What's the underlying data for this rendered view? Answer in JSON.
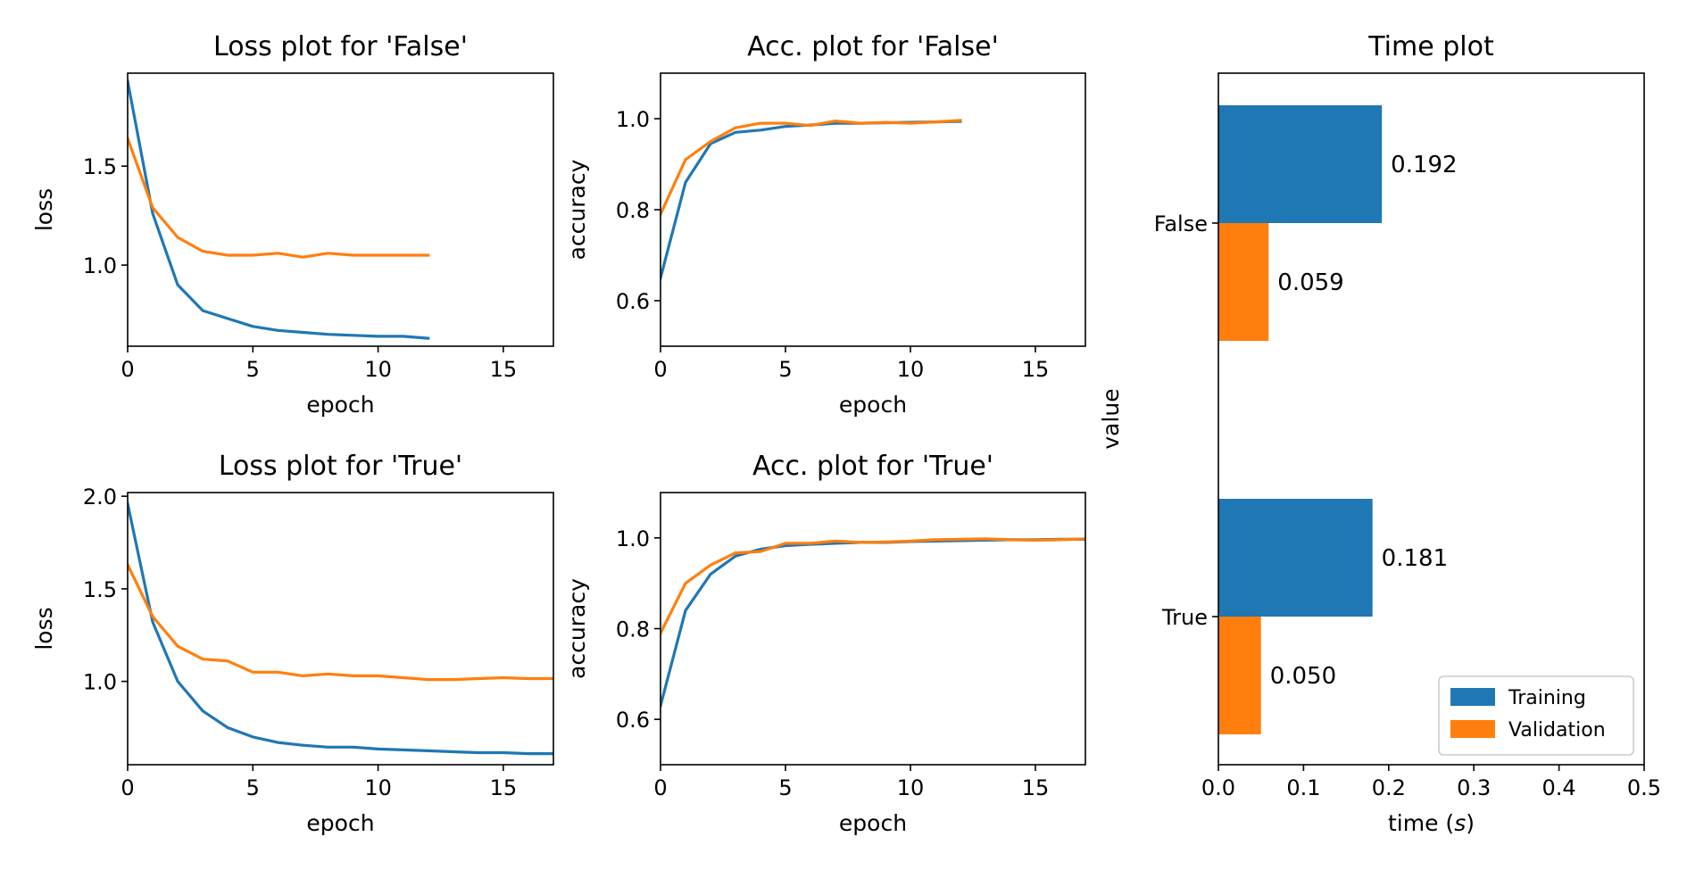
{
  "chart_data": [
    {
      "type": "line",
      "title": "Loss plot for 'False'",
      "xlabel": "epoch",
      "ylabel": "loss",
      "xlim": [
        0,
        17
      ],
      "ylim": [
        0.59,
        1.97
      ],
      "xticks": [
        0,
        5,
        10,
        15
      ],
      "yticks": [
        1.0,
        1.5
      ],
      "grid": false,
      "series": [
        {
          "color": "#1f77b4",
          "x": [
            0,
            1,
            2,
            3,
            4,
            5,
            6,
            7,
            8,
            9,
            10,
            11,
            12
          ],
          "y": [
            1.93,
            1.26,
            0.9,
            0.77,
            0.73,
            0.69,
            0.67,
            0.66,
            0.65,
            0.645,
            0.64,
            0.64,
            0.63
          ]
        },
        {
          "color": "#ff7f0e",
          "x": [
            0,
            1,
            2,
            3,
            4,
            5,
            6,
            7,
            8,
            9,
            10,
            11,
            12
          ],
          "y": [
            1.64,
            1.29,
            1.14,
            1.07,
            1.05,
            1.05,
            1.06,
            1.04,
            1.06,
            1.05,
            1.05,
            1.05,
            1.05
          ]
        }
      ]
    },
    {
      "type": "line",
      "title": "Acc. plot for 'False'",
      "xlabel": "epoch",
      "ylabel": "accuracy",
      "xlim": [
        0,
        17
      ],
      "ylim": [
        0.5,
        1.1
      ],
      "xticks": [
        0,
        5,
        10,
        15
      ],
      "yticks": [
        0.6,
        0.8,
        1.0
      ],
      "grid": false,
      "series": [
        {
          "color": "#1f77b4",
          "x": [
            0,
            1,
            2,
            3,
            4,
            5,
            6,
            7,
            8,
            9,
            10,
            11,
            12
          ],
          "y": [
            0.65,
            0.86,
            0.945,
            0.97,
            0.975,
            0.983,
            0.986,
            0.99,
            0.99,
            0.991,
            0.992,
            0.993,
            0.994
          ]
        },
        {
          "color": "#ff7f0e",
          "x": [
            0,
            1,
            2,
            3,
            4,
            5,
            6,
            7,
            8,
            9,
            10,
            11,
            12
          ],
          "y": [
            0.79,
            0.91,
            0.95,
            0.98,
            0.99,
            0.99,
            0.985,
            0.995,
            0.99,
            0.992,
            0.99,
            0.993,
            0.996
          ]
        }
      ]
    },
    {
      "type": "line",
      "title": "Loss plot for 'True'",
      "xlabel": "epoch",
      "ylabel": "loss",
      "xlim": [
        0,
        17
      ],
      "ylim": [
        0.55,
        2.02
      ],
      "xticks": [
        0,
        5,
        10,
        15
      ],
      "yticks": [
        1.0,
        1.5,
        2.0
      ],
      "grid": false,
      "series": [
        {
          "color": "#1f77b4",
          "x": [
            0,
            1,
            2,
            3,
            4,
            5,
            6,
            7,
            8,
            9,
            10,
            11,
            12,
            13,
            14,
            15,
            16,
            17
          ],
          "y": [
            1.96,
            1.32,
            1.0,
            0.84,
            0.75,
            0.7,
            0.67,
            0.655,
            0.645,
            0.645,
            0.635,
            0.63,
            0.625,
            0.62,
            0.615,
            0.615,
            0.61,
            0.61
          ]
        },
        {
          "color": "#ff7f0e",
          "x": [
            0,
            1,
            2,
            3,
            4,
            5,
            6,
            7,
            8,
            9,
            10,
            11,
            12,
            13,
            14,
            15,
            16,
            17
          ],
          "y": [
            1.63,
            1.35,
            1.19,
            1.12,
            1.11,
            1.05,
            1.05,
            1.03,
            1.04,
            1.03,
            1.03,
            1.02,
            1.01,
            1.01,
            1.015,
            1.02,
            1.015,
            1.015
          ]
        }
      ]
    },
    {
      "type": "line",
      "title": "Acc. plot for 'True'",
      "xlabel": "epoch",
      "ylabel": "accuracy",
      "xlim": [
        0,
        17
      ],
      "ylim": [
        0.5,
        1.1
      ],
      "xticks": [
        0,
        5,
        10,
        15
      ],
      "yticks": [
        0.6,
        0.8,
        1.0
      ],
      "grid": false,
      "series": [
        {
          "color": "#1f77b4",
          "x": [
            0,
            1,
            2,
            3,
            4,
            5,
            6,
            7,
            8,
            9,
            10,
            11,
            12,
            13,
            14,
            15,
            16,
            17
          ],
          "y": [
            0.63,
            0.84,
            0.92,
            0.96,
            0.975,
            0.983,
            0.986,
            0.988,
            0.99,
            0.99,
            0.992,
            0.993,
            0.994,
            0.995,
            0.996,
            0.996,
            0.997,
            0.997
          ]
        },
        {
          "color": "#ff7f0e",
          "x": [
            0,
            1,
            2,
            3,
            4,
            5,
            6,
            7,
            8,
            9,
            10,
            11,
            12,
            13,
            14,
            15,
            16,
            17
          ],
          "y": [
            0.79,
            0.9,
            0.94,
            0.967,
            0.97,
            0.988,
            0.988,
            0.993,
            0.99,
            0.991,
            0.993,
            0.996,
            0.997,
            0.998,
            0.996,
            0.995,
            0.996,
            0.998
          ]
        }
      ]
    },
    {
      "type": "bar",
      "orientation": "horizontal",
      "title": "Time plot",
      "xlabel_main": "time (",
      "xlabel_italic": "s",
      "xlabel_end": ")",
      "ylabel": "value",
      "categories": [
        "False",
        "True"
      ],
      "xlim": [
        0,
        0.5
      ],
      "xticks": [
        0.0,
        0.1,
        0.2,
        0.3,
        0.4,
        0.5
      ],
      "legend_position": "lower-right",
      "series": [
        {
          "name": "Training",
          "color": "#1f77b4",
          "values": [
            0.192,
            0.181
          ],
          "labels": [
            "0.192",
            "0.181"
          ]
        },
        {
          "name": "Validation",
          "color": "#ff7f0e",
          "values": [
            0.059,
            0.05
          ],
          "labels": [
            "0.059",
            "0.050"
          ]
        }
      ]
    }
  ]
}
